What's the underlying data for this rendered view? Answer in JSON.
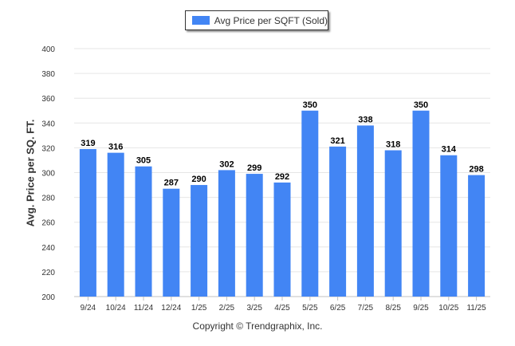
{
  "legend": {
    "label": "Avg Price per SQFT (Sold)"
  },
  "footer": {
    "copyright": "Copyright © Trendgraphix, Inc."
  },
  "colors": {
    "bar": "#4285f4",
    "grid": "#e6e6e6",
    "text": "#333333"
  },
  "chart_data": {
    "type": "bar",
    "categories": [
      "9/24",
      "10/24",
      "11/24",
      "12/24",
      "1/25",
      "2/25",
      "3/25",
      "4/25",
      "5/25",
      "6/25",
      "7/25",
      "8/25",
      "9/25",
      "10/25",
      "11/25"
    ],
    "series": [
      {
        "name": "Avg Price per SQFT (Sold)",
        "values": [
          319,
          316,
          305,
          287,
          290,
          302,
          299,
          292,
          350,
          321,
          338,
          318,
          350,
          314,
          298
        ]
      }
    ],
    "ylabel": "Avg. Price per SQ. FT.",
    "xlabel": "",
    "ylim": [
      200,
      400
    ],
    "yticks": [
      200,
      220,
      240,
      260,
      280,
      300,
      320,
      340,
      360,
      380,
      400
    ],
    "grid": true,
    "data_labels": true,
    "legend_position": "top-center"
  }
}
